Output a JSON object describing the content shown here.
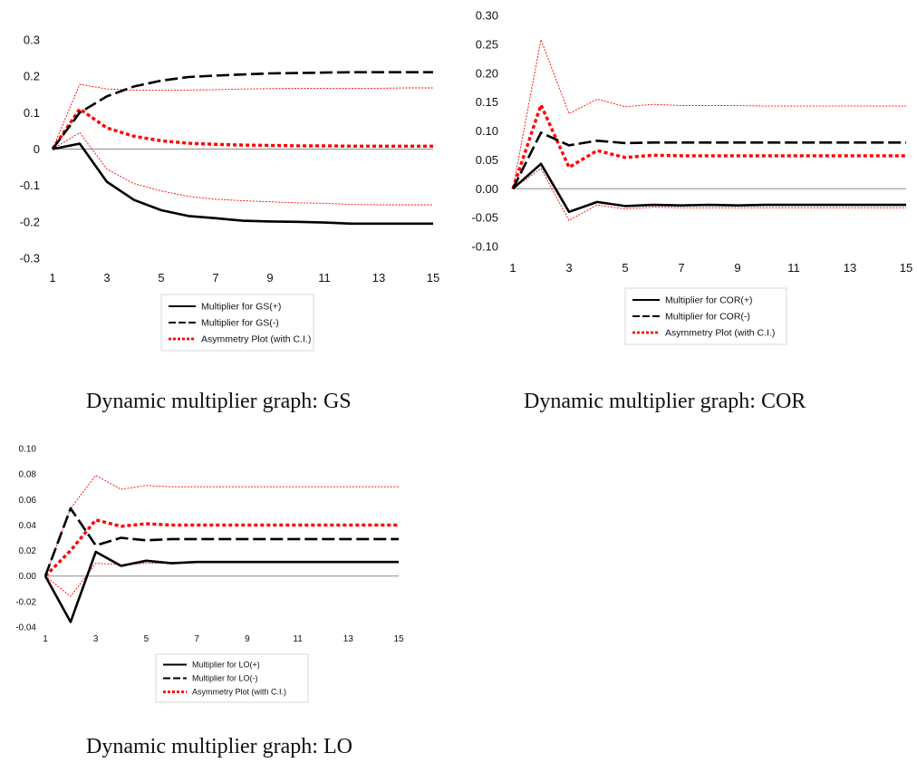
{
  "charts": [
    {
      "chart_data": {
        "type": "line",
        "x": [
          1,
          2,
          3,
          4,
          5,
          6,
          7,
          8,
          9,
          10,
          11,
          12,
          13,
          14,
          15
        ],
        "x_tick_labels": [
          "1",
          "3",
          "5",
          "7",
          "9",
          "11",
          "13",
          "15"
        ],
        "y_tick_labels": [
          "0.3",
          "0.2",
          "0.1",
          "0",
          "-0.1",
          "-0.2",
          "-0.3"
        ],
        "ylim": [
          -0.3,
          0.3
        ],
        "grid": "horizontal-zero-line",
        "legend": {
          "placement": "bottom",
          "entries": [
            "Multiplier for GS(+)",
            "Multiplier for GS(-)",
            "Asymmetry Plot (with C.I.)"
          ]
        },
        "series": [
          {
            "name": "Multiplier for GS(+)",
            "style": "solid",
            "color": "#000000",
            "values": [
              0,
              0.015,
              -0.09,
              -0.14,
              -0.168,
              -0.184,
              -0.19,
              -0.197,
              -0.199,
              -0.2,
              -0.202,
              -0.205,
              -0.205,
              -0.205,
              -0.205
            ]
          },
          {
            "name": "Multiplier for GS(-)",
            "style": "dashed",
            "color": "#000000",
            "values": [
              0,
              0.1,
              0.145,
              0.172,
              0.188,
              0.198,
              0.202,
              0.205,
              0.208,
              0.209,
              0.21,
              0.211,
              0.211,
              0.211,
              0.211
            ]
          },
          {
            "name": "Asymmetry Plot (with C.I.)",
            "style": "dotted",
            "color": "#ff0000",
            "values": [
              0,
              0.11,
              0.058,
              0.035,
              0.023,
              0.016,
              0.013,
              0.011,
              0.01,
              0.009,
              0.009,
              0.008,
              0.008,
              0.008,
              0.008
            ]
          },
          {
            "role": "ci-upper",
            "style": "thin-dotted",
            "color": "#ff0000",
            "values": [
              0,
              0.178,
              0.165,
              0.162,
              0.162,
              0.162,
              0.163,
              0.165,
              0.166,
              0.167,
              0.167,
              0.167,
              0.167,
              0.168,
              0.168
            ]
          },
          {
            "role": "ci-lower",
            "style": "thin-dotted",
            "color": "#ff0000",
            "values": [
              0,
              0.045,
              -0.055,
              -0.095,
              -0.115,
              -0.13,
              -0.138,
              -0.142,
              -0.145,
              -0.148,
              -0.149,
              -0.152,
              -0.153,
              -0.153,
              -0.153
            ]
          }
        ]
      },
      "caption": "Dynamic multiplier graph: GS"
    },
    {
      "chart_data": {
        "type": "line",
        "x": [
          1,
          2,
          3,
          4,
          5,
          6,
          7,
          8,
          9,
          10,
          11,
          12,
          13,
          14,
          15
        ],
        "x_tick_labels": [
          "1",
          "3",
          "5",
          "7",
          "9",
          "11",
          "13",
          "15"
        ],
        "y_tick_labels": [
          "0.30",
          "0.25",
          "0.20",
          "0.15",
          "0.10",
          "0.05",
          "0.00",
          "-0.05",
          "-0.10"
        ],
        "ylim": [
          -0.1,
          0.3
        ],
        "grid": "horizontal-zero-line",
        "legend": {
          "placement": "bottom",
          "entries": [
            "Multiplier for COR(+)",
            "Multiplier for COR(-)",
            "Asymmetry Plot (with C.I.)"
          ]
        },
        "series": [
          {
            "name": "Multiplier for COR(+)",
            "style": "solid",
            "color": "#000000",
            "values": [
              0,
              0.043,
              -0.04,
              -0.023,
              -0.03,
              -0.028,
              -0.029,
              -0.028,
              -0.029,
              -0.028,
              -0.028,
              -0.028,
              -0.028,
              -0.028,
              -0.028
            ]
          },
          {
            "name": "Multiplier for COR(-)",
            "style": "dashed",
            "color": "#000000",
            "values": [
              0,
              0.097,
              0.075,
              0.083,
              0.079,
              0.08,
              0.08,
              0.08,
              0.08,
              0.08,
              0.08,
              0.08,
              0.08,
              0.08,
              0.08
            ]
          },
          {
            "name": "Asymmetry Plot (with C.I.)",
            "style": "dotted",
            "color": "#ff0000",
            "values": [
              0,
              0.145,
              0.037,
              0.066,
              0.054,
              0.058,
              0.057,
              0.057,
              0.057,
              0.057,
              0.057,
              0.057,
              0.057,
              0.057,
              0.057
            ]
          },
          {
            "role": "ci-upper",
            "style": "thin-dotted",
            "color": "#ff0000",
            "values": [
              0,
              0.258,
              0.13,
              0.155,
              0.142,
              0.146,
              0.144,
              0.144,
              0.144,
              0.143,
              0.143,
              0.143,
              0.143,
              0.143,
              0.143
            ]
          },
          {
            "role": "ci-lower",
            "style": "thin-dotted",
            "color": "#ff0000",
            "values": [
              0,
              0.035,
              -0.055,
              -0.028,
              -0.035,
              -0.032,
              -0.033,
              -0.033,
              -0.033,
              -0.033,
              -0.033,
              -0.033,
              -0.033,
              -0.033,
              -0.033
            ]
          }
        ]
      },
      "caption": "Dynamic multiplier graph: COR"
    },
    {
      "chart_data": {
        "type": "line",
        "x": [
          1,
          2,
          3,
          4,
          5,
          6,
          7,
          8,
          9,
          10,
          11,
          12,
          13,
          14,
          15
        ],
        "x_tick_labels": [
          "1",
          "3",
          "5",
          "7",
          "9",
          "11",
          "13",
          "15"
        ],
        "y_tick_labels": [
          "0.10",
          "0.08",
          "0.06",
          "0.04",
          "0.02",
          "0.00",
          "-0.02",
          "-0.04"
        ],
        "ylim": [
          -0.04,
          0.1
        ],
        "grid": "horizontal-zero-line",
        "legend": {
          "placement": "bottom",
          "entries": [
            "Multiplier for LO(+)",
            "Multiplier for LO(-)",
            "Asymmetry Plot (with C.I.)"
          ]
        },
        "series": [
          {
            "name": "Multiplier for LO(+)",
            "style": "solid",
            "color": "#000000",
            "values": [
              0,
              -0.036,
              0.019,
              0.008,
              0.012,
              0.01,
              0.011,
              0.011,
              0.011,
              0.011,
              0.011,
              0.011,
              0.011,
              0.011,
              0.011
            ]
          },
          {
            "name": "Multiplier for LO(-)",
            "style": "dashed",
            "color": "#000000",
            "values": [
              0,
              0.053,
              0.024,
              0.03,
              0.028,
              0.029,
              0.029,
              0.029,
              0.029,
              0.029,
              0.029,
              0.029,
              0.029,
              0.029,
              0.029
            ]
          },
          {
            "name": "Asymmetry Plot (with C.I.)",
            "style": "dotted",
            "color": "#ff0000",
            "values": [
              0,
              0.02,
              0.044,
              0.039,
              0.041,
              0.04,
              0.04,
              0.04,
              0.04,
              0.04,
              0.04,
              0.04,
              0.04,
              0.04,
              0.04
            ]
          },
          {
            "role": "ci-upper",
            "style": "thin-dotted",
            "color": "#ff0000",
            "values": [
              0,
              0.053,
              0.079,
              0.068,
              0.071,
              0.07,
              0.07,
              0.07,
              0.07,
              0.07,
              0.07,
              0.07,
              0.07,
              0.07,
              0.07
            ]
          },
          {
            "role": "ci-lower",
            "style": "thin-dotted",
            "color": "#ff0000",
            "values": [
              0,
              -0.016,
              0.01,
              0.009,
              0.01,
              0.01,
              0.011,
              0.011,
              0.011,
              0.011,
              0.011,
              0.011,
              0.011,
              0.011,
              0.011
            ]
          }
        ]
      },
      "caption": "Dynamic multiplier graph: LO"
    }
  ]
}
